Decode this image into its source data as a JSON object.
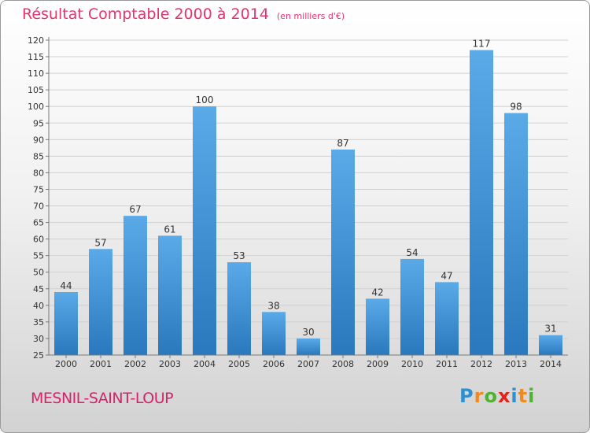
{
  "header": {
    "title": "Résultat Comptable 2000 à 2014",
    "subtitle": "(en milliers d'€)"
  },
  "footer": {
    "commune": "MESNIL-SAINT-LOUP",
    "logo_letters": [
      {
        "ch": "P",
        "color": "#2f8fd1"
      },
      {
        "ch": "r",
        "color": "#f08a1c"
      },
      {
        "ch": "o",
        "color": "#4fb233"
      },
      {
        "ch": "x",
        "color": "#e2231a"
      },
      {
        "ch": "i",
        "color": "#2f8fd1"
      },
      {
        "ch": "t",
        "color": "#f08a1c"
      },
      {
        "ch": "i",
        "color": "#4fb233"
      }
    ]
  },
  "chart_data": {
    "type": "bar",
    "categories": [
      "2000",
      "2001",
      "2002",
      "2003",
      "2004",
      "2005",
      "2006",
      "2007",
      "2008",
      "2009",
      "2010",
      "2011",
      "2012",
      "2013",
      "2014"
    ],
    "values": [
      44,
      57,
      67,
      61,
      100,
      53,
      38,
      30,
      87,
      42,
      54,
      47,
      117,
      98,
      31
    ],
    "ylim": [
      25,
      120
    ],
    "ytick_step": 5,
    "grid": true,
    "bar_color": "#3d97d9",
    "data_labels": true
  }
}
